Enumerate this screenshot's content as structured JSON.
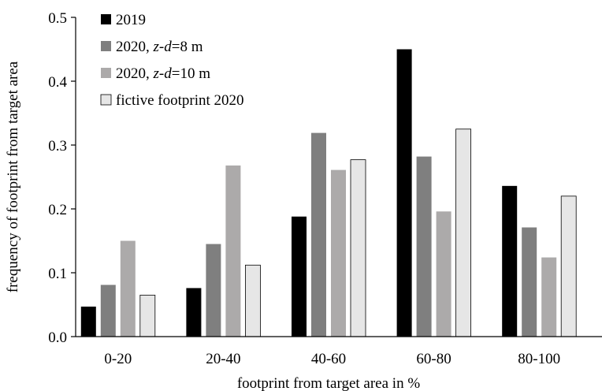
{
  "chart_data": {
    "type": "bar",
    "xlabel": "footprint from target area in %",
    "ylabel": "frequency of footprint from target area",
    "ylim": [
      0,
      0.5
    ],
    "yticks": [
      "0.0",
      "0.1",
      "0.2",
      "0.3",
      "0.4",
      "0.5"
    ],
    "categories": [
      "0-20",
      "20-40",
      "40-60",
      "60-80",
      "80-100"
    ],
    "legend_position": "top-left",
    "series": [
      {
        "name": "2019",
        "name_parts": [
          {
            "text": "2019",
            "italic": false
          }
        ],
        "color": "#000000",
        "values": [
          0.047,
          0.076,
          0.188,
          0.45,
          0.236
        ]
      },
      {
        "name": "2020, z-d=8 m",
        "name_parts": [
          {
            "text": "2020, ",
            "italic": false
          },
          {
            "text": "z-d",
            "italic": true
          },
          {
            "text": "=8 m",
            "italic": false
          }
        ],
        "color": "#7f7f7f",
        "values": [
          0.081,
          0.145,
          0.319,
          0.282,
          0.171
        ]
      },
      {
        "name": "2020, z-d=10 m",
        "name_parts": [
          {
            "text": "2020, ",
            "italic": false
          },
          {
            "text": "z-d",
            "italic": true
          },
          {
            "text": "=10 m",
            "italic": false
          }
        ],
        "color": "#acaaaa",
        "values": [
          0.15,
          0.268,
          0.261,
          0.196,
          0.124
        ]
      },
      {
        "name": "fictive footprint 2020",
        "name_parts": [
          {
            "text": "fictive footprint 2020",
            "italic": false
          }
        ],
        "color": "#e6e6e6",
        "values": [
          0.065,
          0.112,
          0.277,
          0.325,
          0.22
        ]
      }
    ]
  }
}
